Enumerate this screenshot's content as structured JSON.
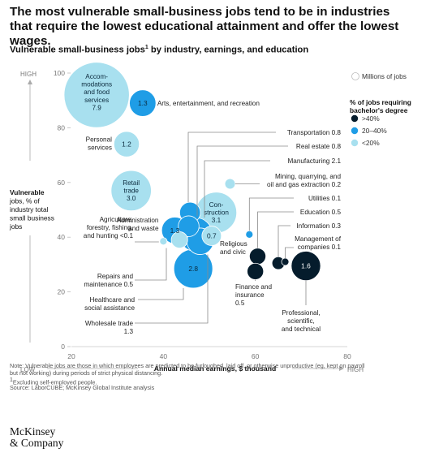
{
  "header": {
    "title": "The most vulnerable small-business jobs tend to be in industries that require the lowest educational attainment and offer the lowest wages.",
    "subtitle": "Vulnerable small-business jobs",
    "subtitle_sup": "1",
    "subtitle_rest": " by industry, earnings, and education"
  },
  "footnotes": {
    "note": "Note: Vulnerable jobs are those in which employees are predicted to be furloughed, laid off, or otherwise unproductive (eg, kept on payroll but not working) during periods of strict physical distancing.",
    "footnote1": "Excluding self-employed people.",
    "footnote1_marker": "1",
    "source": "Source: LaborCUBE; McKinsey Global Institute analysis"
  },
  "brand": {
    "line1": "McKinsey",
    "line2": "& Company"
  },
  "colors": {
    "dark": "#051c2c",
    "mid": "#1f9de6",
    "light": "#a8e0ef",
    "axis": "#9a9a9a",
    "leader": "#8a8a8a"
  },
  "chart_data": {
    "type": "bubble",
    "xlabel": "Annual median earnings, $ thousand",
    "ylabel": [
      "Vulnerable",
      "jobs, % of",
      "industry total",
      "small business",
      "jobs"
    ],
    "ylabel_bold": "Vulnerable",
    "xlim": [
      20,
      80
    ],
    "ylim": [
      0,
      100
    ],
    "xticks": [
      20,
      40,
      60,
      80
    ],
    "yticks": [
      0,
      20,
      40,
      60,
      80,
      100
    ],
    "x_low": "LOW",
    "x_high": "HIGH",
    "y_high": "HIGH",
    "size_legend": "Millions of jobs",
    "color_legend_title": [
      "% of jobs requiring",
      "bachelor's degree"
    ],
    "color_legend": [
      {
        "key": "dark",
        "label": ">40%"
      },
      {
        "key": "mid",
        "label": "20–40%"
      },
      {
        "key": "light",
        "label": "<20%"
      }
    ],
    "bubbles": [
      {
        "name": [
          "Accom-",
          "modations",
          "and food",
          "services"
        ],
        "jobs": "7.9",
        "x": 25.5,
        "y": 92,
        "color": "light",
        "inside": true
      },
      {
        "name": [
          "Arts, entertainment, and recreation"
        ],
        "jobs": "1.3",
        "x": 35.5,
        "y": 89,
        "color": "mid",
        "inside": false
      },
      {
        "name": [
          "Personal",
          "services"
        ],
        "jobs": "1.2",
        "x": 32,
        "y": 74,
        "color": "light",
        "inside": false
      },
      {
        "name": [
          "Retail",
          "trade"
        ],
        "jobs": "3.0",
        "x": 33,
        "y": 57,
        "color": "light",
        "inside": true
      },
      {
        "name": [
          "Transportation"
        ],
        "jobs": "0.8",
        "x": 45.8,
        "y": 49,
        "color": "mid",
        "inside": false
      },
      {
        "name": [
          "Real estate"
        ],
        "jobs": "0.8",
        "x": 45.5,
        "y": 44,
        "color": "mid",
        "inside": false
      },
      {
        "name": [
          "Manufacturing"
        ],
        "jobs": "2.1",
        "x": 47,
        "y": 41,
        "color": "mid",
        "inside": false
      },
      {
        "name": [
          "Mining, quarrying, and",
          "oil and gas extraction"
        ],
        "jobs": "0.2",
        "x": 54.5,
        "y": 59.5,
        "color": "light",
        "inside": false
      },
      {
        "name": [
          "Con-",
          "struction"
        ],
        "jobs": "3.1",
        "x": 51.5,
        "y": 49,
        "color": "light",
        "inside": true
      },
      {
        "name": [
          "Utilities"
        ],
        "jobs": "0.1",
        "x": 58.7,
        "y": 41,
        "color": "mid",
        "inside": false
      },
      {
        "name": [
          "Religious",
          "and civic"
        ],
        "jobs": "0.7",
        "x": 50.5,
        "y": 40.5,
        "color": "light",
        "inside": false
      },
      {
        "name": [
          "Administration",
          "and waste"
        ],
        "jobs": "1.3",
        "x": 42.5,
        "y": 42.5,
        "color": "mid",
        "inside": false
      },
      {
        "name": [
          "Agriculture,",
          "forestry, fishing,",
          "and hunting"
        ],
        "jobs": "<0.1",
        "x": 40,
        "y": 38.5,
        "color": "light",
        "inside": false
      },
      {
        "name": [
          "Repairs and",
          "maintenance"
        ],
        "jobs": "0.5",
        "x": 43.5,
        "y": 39,
        "color": "light",
        "inside": false
      },
      {
        "name": [
          "Healthcare and",
          "social assistance"
        ],
        "jobs": "2.8",
        "x": 46.5,
        "y": 28.5,
        "color": "mid",
        "inside": false
      },
      {
        "name": [
          "Wholesale trade"
        ],
        "jobs": "1.3",
        "x": 48,
        "y": 38.5,
        "color": "mid",
        "inside": false
      },
      {
        "name": [
          "Education"
        ],
        "jobs": "0.5",
        "x": 60.5,
        "y": 33,
        "color": "dark",
        "inside": false
      },
      {
        "name": [
          "Finance and",
          "insurance"
        ],
        "jobs": "0.5",
        "x": 60,
        "y": 27.5,
        "color": "dark",
        "inside": false
      },
      {
        "name": [
          "Information"
        ],
        "jobs": "0.3",
        "x": 65,
        "y": 30.5,
        "color": "dark",
        "inside": false
      },
      {
        "name": [
          "Management of",
          "companies"
        ],
        "jobs": "0.1",
        "x": 66.5,
        "y": 31,
        "color": "dark",
        "inside": false
      },
      {
        "name": [
          "Professional,",
          "scientific,",
          "and technical"
        ],
        "jobs": "1.6",
        "x": 71,
        "y": 29.5,
        "color": "dark",
        "inside": false
      }
    ]
  }
}
